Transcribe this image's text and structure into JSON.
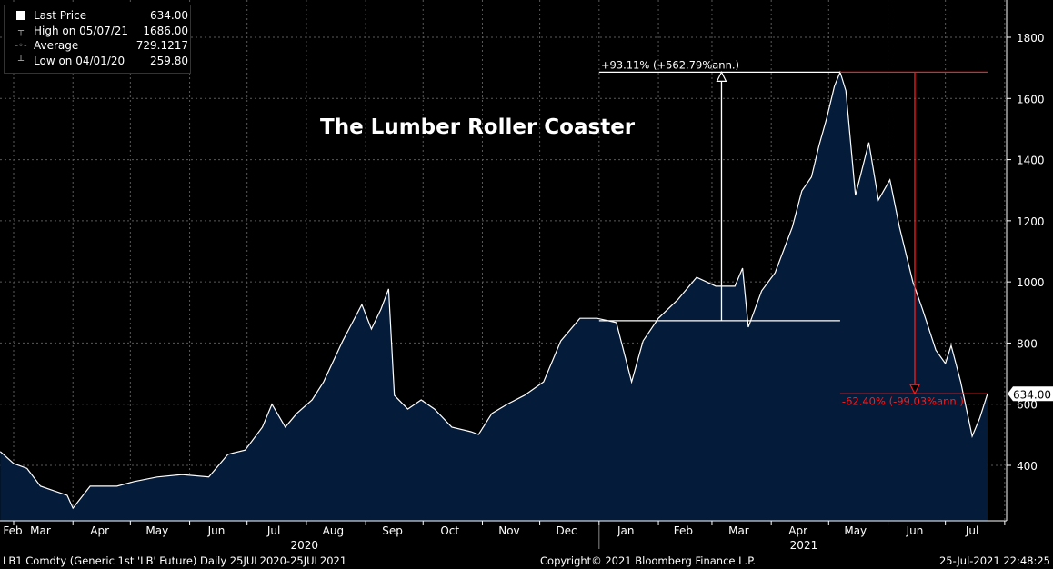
{
  "legend": {
    "items": [
      {
        "label": "Last Price",
        "value": "634.00",
        "icon": "filled-square-icon"
      },
      {
        "label": "High on 05/07/21",
        "value": "1686.00",
        "icon": "high-marker-icon"
      },
      {
        "label": "Average",
        "value": "729.1217",
        "icon": "average-marker-icon"
      },
      {
        "label": "Low on 04/01/20",
        "value": "259.80",
        "icon": "low-marker-icon"
      }
    ]
  },
  "footer": {
    "security": "LB1 Comdty (Generic 1st 'LB' Future)  Daily 25JUL2020-25JUL2021",
    "copyright": "Copyright© 2021 Bloomberg Finance L.P.",
    "timestamp": "25-Jul-2021 22:48:25"
  },
  "colors": {
    "fill": "#041c3a",
    "line": "#ffffff",
    "up": "#ffffff",
    "down": "#ff1a1a",
    "grid": "#5a5a5a"
  },
  "chart_data": {
    "type": "area",
    "title": "The Lumber Roller Coaster",
    "xlabel": "",
    "ylabel": "",
    "ylim": [
      200,
      1900
    ],
    "yticks": [
      400,
      600,
      800,
      1000,
      1200,
      1400,
      1600,
      1800
    ],
    "ytick_labels": [
      "400",
      "600",
      "800",
      "1000",
      "1200",
      "1400",
      "1600",
      "1800"
    ],
    "month_labels": [
      {
        "label": "Feb",
        "date": "2020-02-16"
      },
      {
        "label": "Mar",
        "date": "2020-03-15"
      },
      {
        "label": "Apr",
        "date": "2020-04-15"
      },
      {
        "label": "May",
        "date": "2020-05-15"
      },
      {
        "label": "Jun",
        "date": "2020-06-15"
      },
      {
        "label": "Jul",
        "date": "2020-07-15"
      },
      {
        "label": "Aug",
        "date": "2020-08-15"
      },
      {
        "label": "Sep",
        "date": "2020-09-15"
      },
      {
        "label": "Oct",
        "date": "2020-10-15"
      },
      {
        "label": "Nov",
        "date": "2020-11-15"
      },
      {
        "label": "Dec",
        "date": "2020-12-15"
      },
      {
        "label": "Jan",
        "date": "2021-01-15"
      },
      {
        "label": "Feb",
        "date": "2021-02-14"
      },
      {
        "label": "Mar",
        "date": "2021-03-15"
      },
      {
        "label": "Apr",
        "date": "2021-04-15"
      },
      {
        "label": "May",
        "date": "2021-05-15"
      },
      {
        "label": "Jun",
        "date": "2021-06-15"
      },
      {
        "label": "Jul",
        "date": "2021-07-15"
      }
    ],
    "month_ticks": [
      "2020-03-01",
      "2020-04-01",
      "2020-05-01",
      "2020-06-01",
      "2020-07-01",
      "2020-08-01",
      "2020-09-01",
      "2020-10-01",
      "2020-11-01",
      "2020-12-01",
      "2021-01-01",
      "2021-02-01",
      "2021-03-01",
      "2021-04-01",
      "2021-05-01",
      "2021-06-01",
      "2021-07-01",
      "2021-08-01"
    ],
    "year_labels": [
      {
        "label": "2020",
        "date": "2020-07-31"
      },
      {
        "label": "2021",
        "date": "2021-04-18"
      }
    ],
    "series": [
      {
        "name": "Last Price",
        "x": [
          "2020-02-23",
          "2020-03-01",
          "2020-03-08",
          "2020-03-15",
          "2020-03-22",
          "2020-03-29",
          "2020-04-01",
          "2020-04-10",
          "2020-04-17",
          "2020-04-24",
          "2020-05-03",
          "2020-05-15",
          "2020-05-28",
          "2020-06-11",
          "2020-06-21",
          "2020-06-30",
          "2020-07-09",
          "2020-07-14",
          "2020-07-21",
          "2020-07-27",
          "2020-08-04",
          "2020-08-10",
          "2020-08-20",
          "2020-08-30",
          "2020-09-04",
          "2020-09-09",
          "2020-09-13",
          "2020-09-16",
          "2020-09-23",
          "2020-09-30",
          "2020-10-07",
          "2020-10-16",
          "2020-10-26",
          "2020-10-30",
          "2020-11-06",
          "2020-11-14",
          "2020-11-23",
          "2020-12-03",
          "2020-12-12",
          "2020-12-22",
          "2020-12-31",
          "2021-01-10",
          "2021-01-18",
          "2021-01-24",
          "2021-02-01",
          "2021-02-11",
          "2021-02-21",
          "2021-03-03",
          "2021-03-13",
          "2021-03-17",
          "2021-03-20",
          "2021-03-27",
          "2021-04-03",
          "2021-04-12",
          "2021-04-17",
          "2021-04-22",
          "2021-04-26",
          "2021-04-30",
          "2021-05-04",
          "2021-05-07",
          "2021-05-10",
          "2021-05-15",
          "2021-05-22",
          "2021-05-27",
          "2021-06-02",
          "2021-06-07",
          "2021-06-14",
          "2021-06-19",
          "2021-06-26",
          "2021-07-01",
          "2021-07-04",
          "2021-07-09",
          "2021-07-15",
          "2021-07-19",
          "2021-07-23"
        ],
        "values": [
          445,
          406,
          390,
          332,
          317,
          302,
          260,
          332,
          332,
          332,
          347,
          362,
          370,
          362,
          436,
          450,
          525,
          600,
          525,
          570,
          614,
          673,
          807,
          926,
          846,
          911,
          977,
          629,
          584,
          614,
          584,
          525,
          510,
          501,
          570,
          600,
          629,
          673,
          807,
          881,
          881,
          867,
          673,
          807,
          881,
          941,
          1015,
          986,
          986,
          1045,
          852,
          971,
          1030,
          1179,
          1298,
          1343,
          1447,
          1536,
          1640,
          1686,
          1625,
          1283,
          1456,
          1268,
          1334,
          1179,
          1000,
          911,
          777,
          733,
          792,
          673,
          495,
          555,
          634
        ]
      }
    ],
    "last_value_label": "634.00",
    "annotations": [
      {
        "type": "up",
        "text": "+93.11% (+562.79%ann.)",
        "from_value": 873,
        "to_value": 1686,
        "start": "2021-01-01",
        "end": "2021-05-07",
        "arrow_date": "2021-03-06"
      },
      {
        "type": "down",
        "text": "-62.40% (-99.03%ann.)",
        "from_value": 1686,
        "to_value": 634,
        "start": "2021-05-07",
        "end": "2021-07-23",
        "arrow_date": "2021-06-15"
      }
    ]
  }
}
